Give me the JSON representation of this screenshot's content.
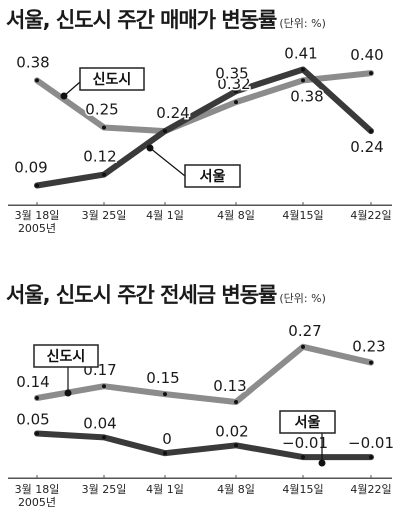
{
  "chart_data": [
    {
      "type": "line",
      "title": "서울, 신도시 주간 매매가 변동률",
      "unit": "(단위: %)",
      "categories": [
        "3월 18일",
        "3월 25일",
        "4월 1일",
        "4월 8일",
        "4월15일",
        "4월22일"
      ],
      "year_label": "2005년",
      "series": [
        {
          "name": "신도시",
          "values": [
            0.38,
            0.25,
            0.24,
            0.32,
            0.38,
            0.4
          ],
          "color": "#8c8c8c"
        },
        {
          "name": "서울",
          "values": [
            0.09,
            0.12,
            0.24,
            0.35,
            0.41,
            0.24
          ],
          "color": "#3a3a3a"
        }
      ],
      "data_labels": [
        {
          "text": "0.38",
          "series": 0,
          "index": 0
        },
        {
          "text": "0.25",
          "series": 0,
          "index": 1
        },
        {
          "text": "0.24",
          "series": 0,
          "index": 2
        },
        {
          "text": "0.32",
          "series": 0,
          "index": 3
        },
        {
          "text": "0.38",
          "series": 0,
          "index": 4
        },
        {
          "text": "0.40",
          "series": 0,
          "index": 5
        },
        {
          "text": "0.09",
          "series": 1,
          "index": 0
        },
        {
          "text": "0.12",
          "series": 1,
          "index": 1
        },
        {
          "text": "0.35",
          "series": 1,
          "index": 3
        },
        {
          "text": "0.41",
          "series": 1,
          "index": 4
        },
        {
          "text": "0.24",
          "series": 1,
          "index": 5
        }
      ],
      "ylim": [
        0.05,
        0.45
      ],
      "grid": false
    },
    {
      "type": "line",
      "title": "서울, 신도시 주간 전세금 변동률",
      "unit": "(단위: %)",
      "categories": [
        "3월 18일",
        "3월 25일",
        "4월 1일",
        "4월 8일",
        "4월15일",
        "4월22일"
      ],
      "year_label": "2005년",
      "series": [
        {
          "name": "신도시",
          "values": [
            0.14,
            0.17,
            0.15,
            0.13,
            0.27,
            0.23
          ],
          "color": "#8c8c8c"
        },
        {
          "name": "서울",
          "values": [
            0.05,
            0.04,
            0,
            0.02,
            -0.01,
            -0.01
          ],
          "color": "#3a3a3a"
        }
      ],
      "data_labels": [
        {
          "text": "0.14",
          "series": 0,
          "index": 0
        },
        {
          "text": "0.17",
          "series": 0,
          "index": 1
        },
        {
          "text": "0.15",
          "series": 0,
          "index": 2
        },
        {
          "text": "0.13",
          "series": 0,
          "index": 3
        },
        {
          "text": "0.27",
          "series": 0,
          "index": 4
        },
        {
          "text": "0.23",
          "series": 0,
          "index": 5
        },
        {
          "text": "0.05",
          "series": 1,
          "index": 0
        },
        {
          "text": "0.04",
          "series": 1,
          "index": 1
        },
        {
          "text": "0",
          "series": 1,
          "index": 2
        },
        {
          "text": "0.02",
          "series": 1,
          "index": 3
        },
        {
          "text": "−0.01",
          "series": 1,
          "index": 4
        },
        {
          "text": "−0.01",
          "series": 1,
          "index": 5
        }
      ],
      "ylim": [
        -0.03,
        0.3
      ],
      "grid": false
    }
  ]
}
